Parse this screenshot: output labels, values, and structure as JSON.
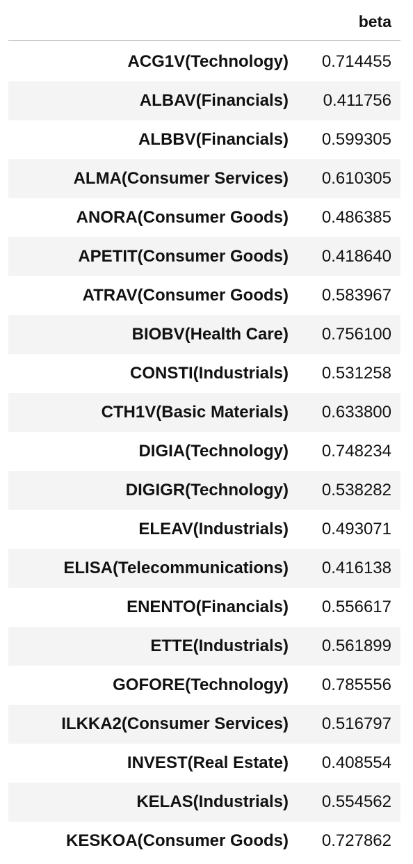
{
  "table": {
    "column_header": "beta",
    "rows": [
      {
        "label": "ACG1V(Technology)",
        "value": "0.714455"
      },
      {
        "label": "ALBAV(Financials)",
        "value": "0.411756"
      },
      {
        "label": "ALBBV(Financials)",
        "value": "0.599305"
      },
      {
        "label": "ALMA(Consumer Services)",
        "value": "0.610305"
      },
      {
        "label": "ANORA(Consumer Goods)",
        "value": "0.486385"
      },
      {
        "label": "APETIT(Consumer Goods)",
        "value": "0.418640"
      },
      {
        "label": "ATRAV(Consumer Goods)",
        "value": "0.583967"
      },
      {
        "label": "BIOBV(Health Care)",
        "value": "0.756100"
      },
      {
        "label": "CONSTI(Industrials)",
        "value": "0.531258"
      },
      {
        "label": "CTH1V(Basic Materials)",
        "value": "0.633800"
      },
      {
        "label": "DIGIA(Technology)",
        "value": "0.748234"
      },
      {
        "label": "DIGIGR(Technology)",
        "value": "0.538282"
      },
      {
        "label": "ELEAV(Industrials)",
        "value": "0.493071"
      },
      {
        "label": "ELISA(Telecommunications)",
        "value": "0.416138"
      },
      {
        "label": "ENENTO(Financials)",
        "value": "0.556617"
      },
      {
        "label": "ETTE(Industrials)",
        "value": "0.561899"
      },
      {
        "label": "GOFORE(Technology)",
        "value": "0.785556"
      },
      {
        "label": "ILKKA2(Consumer Services)",
        "value": "0.516797"
      },
      {
        "label": "INVEST(Real Estate)",
        "value": "0.408554"
      },
      {
        "label": "KELAS(Industrials)",
        "value": "0.554562"
      },
      {
        "label": "KESKOA(Consumer Goods)",
        "value": "0.727862"
      }
    ]
  }
}
